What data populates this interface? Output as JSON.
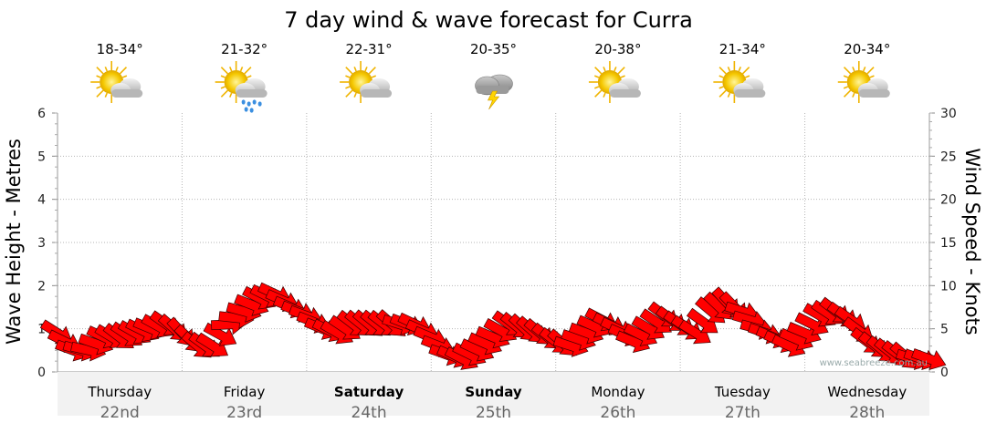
{
  "chart_data": {
    "type": "line",
    "title": "7 day wind & wave forecast for Curra",
    "ylabel_left": "Wave Height - Metres",
    "ylabel_right": "Wind Speed - Knots",
    "ylim_left": [
      0,
      6
    ],
    "ylim_right": [
      0,
      30
    ],
    "yticks_left": [
      "0",
      "1",
      "2",
      "3",
      "4",
      "5",
      "6"
    ],
    "yticks_right": [
      "0",
      "5",
      "10",
      "15",
      "20",
      "25",
      "30"
    ],
    "grid": true,
    "watermark": "www.seabreeze.com.au",
    "days": [
      {
        "name": "Thursday",
        "date": "22nd",
        "bold": false,
        "temp": "18-34°",
        "icon": "sun-cloud-icon"
      },
      {
        "name": "Friday",
        "date": "23rd",
        "bold": false,
        "temp": "21-32°",
        "icon": "sun-cloud-rain-icon"
      },
      {
        "name": "Saturday",
        "date": "24th",
        "bold": true,
        "temp": "22-31°",
        "icon": "sun-cloud-icon"
      },
      {
        "name": "Sunday",
        "date": "25th",
        "bold": true,
        "temp": "20-35°",
        "icon": "storm-icon"
      },
      {
        "name": "Monday",
        "date": "26th",
        "bold": false,
        "temp": "20-38°",
        "icon": "sun-cloud-icon"
      },
      {
        "name": "Tuesday",
        "date": "27th",
        "bold": false,
        "temp": "21-34°",
        "icon": "sun-cloud-icon"
      },
      {
        "name": "Wednesday",
        "date": "28th",
        "bold": false,
        "temp": "20-34°",
        "icon": "sun-cloud-icon"
      }
    ],
    "wind_series": {
      "name": "Wind Speed",
      "unit": "knots",
      "x_hours": [
        0,
        3,
        6,
        9,
        12,
        15,
        18,
        21,
        24,
        27,
        30,
        33,
        36,
        39,
        42,
        45,
        48,
        51,
        54,
        57,
        60,
        63,
        66,
        69,
        72,
        75,
        78,
        81,
        84,
        87,
        90,
        93,
        96,
        99,
        102,
        105,
        108,
        111,
        114,
        117,
        120,
        123,
        126,
        129,
        132,
        135,
        138,
        141,
        144,
        147,
        150,
        153,
        156,
        159,
        162,
        165,
        168
      ],
      "values": [
        4.5,
        2.5,
        2.5,
        4,
        4,
        4.5,
        5,
        5.5,
        4.5,
        3,
        3,
        5.5,
        7,
        8.5,
        9,
        7.5,
        6.5,
        5,
        4.5,
        5.5,
        5.5,
        5.5,
        5.5,
        5.5,
        4,
        2,
        1.5,
        2.5,
        4,
        5.5,
        5,
        4.5,
        3.5,
        3,
        4.5,
        6,
        5,
        3.5,
        5,
        6.5,
        5.5,
        4.5,
        7,
        8,
        7,
        5,
        4,
        3,
        4.5,
        6.5,
        7,
        6,
        3.5,
        2.5,
        2,
        1.5,
        1.5
      ],
      "direction_deg": [
        315,
        300,
        290,
        300,
        310,
        300,
        290,
        300,
        310,
        300,
        290,
        280,
        295,
        305,
        300,
        295,
        290,
        290,
        295,
        300,
        300,
        295,
        300,
        305,
        300,
        295,
        300,
        295,
        290,
        300,
        305,
        300,
        295,
        300,
        300,
        305,
        300,
        295,
        300,
        305,
        300,
        295,
        300,
        305,
        300,
        295,
        300,
        300,
        295,
        300,
        305,
        300,
        300,
        300,
        295,
        300,
        300
      ]
    }
  }
}
